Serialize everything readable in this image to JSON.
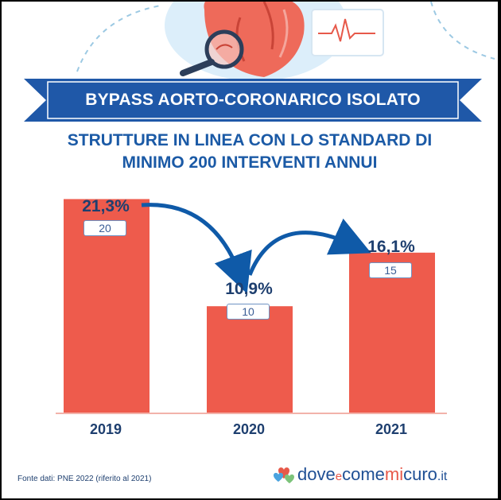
{
  "header": {
    "banner_title": "BYPASS AORTO-CORONARICO ISOLATO",
    "subtitle_line1": "STRUTTURE IN LINEA CON LO STANDARD DI",
    "subtitle_line2": "MINIMO 200 INTERVENTI ANNUI"
  },
  "chart_data": {
    "type": "bar",
    "categories": [
      "2019",
      "2020",
      "2021"
    ],
    "values": [
      20,
      10,
      15
    ],
    "percent_labels": [
      "21,3%",
      "10,9%",
      "16,1%"
    ],
    "count_labels": [
      "20",
      "10",
      "15"
    ],
    "ylim": [
      0,
      23
    ],
    "bar_color": "#ee5b4c",
    "annotation_color": "#0f5aa8",
    "grid": false
  },
  "footer": {
    "source": "Fonte dati: PNE 2022 (riferito al 2021)",
    "brand_d": "d",
    "brand_ove": "ove",
    "brand_e": "e",
    "brand_come": "come",
    "brand_mi": "mi",
    "brand_curo": "curo",
    "brand_it": ".it"
  },
  "colors": {
    "banner": "#1f58a8",
    "title_blue": "#1b5aa6",
    "dark_blue": "#1e3f6f",
    "accent_red": "#ee5b4c"
  },
  "icons": [
    "heart-illustration",
    "magnifier-icon",
    "ecg-monitor-icon",
    "brand-hearts-logo"
  ]
}
